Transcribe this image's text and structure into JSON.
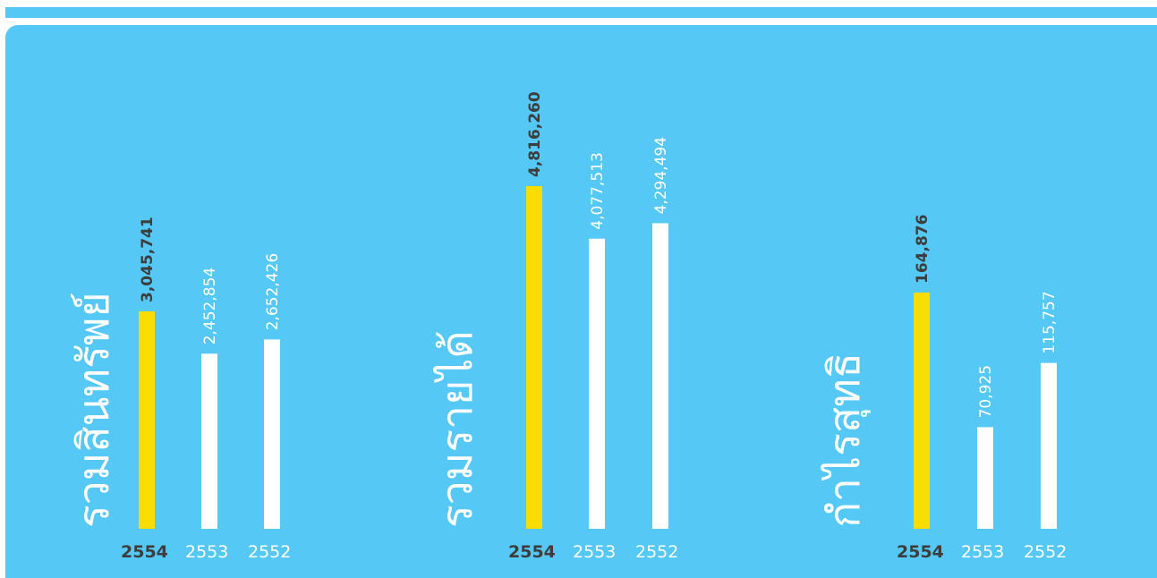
{
  "colors": {
    "panel": "#56c8f5",
    "highlight_bar": "#fadd00",
    "bar": "#ffffff",
    "highlight_text": "#3d3d3d",
    "text": "#ffffff"
  },
  "chart_data": [
    {
      "type": "bar",
      "title": "รวมสินทรัพย์",
      "categories": [
        "2554",
        "2553",
        "2552"
      ],
      "values": [
        3045741,
        2452854,
        2652426
      ],
      "value_labels": [
        "3,045,741",
        "2,452,854",
        "2,652,426"
      ],
      "highlight_index": 0
    },
    {
      "type": "bar",
      "title": "รวมรายได้",
      "categories": [
        "2554",
        "2553",
        "2552"
      ],
      "values": [
        4816260,
        4077513,
        4294494
      ],
      "value_labels": [
        "4,816,260",
        "4,077,513",
        "4,294,494"
      ],
      "highlight_index": 0
    },
    {
      "type": "bar",
      "title": "กำไรสุทธิ",
      "categories": [
        "2554",
        "2553",
        "2552"
      ],
      "values": [
        164876,
        70925,
        115757
      ],
      "value_labels": [
        "164,876",
        "70,925",
        "115,757"
      ],
      "highlight_index": 0
    }
  ]
}
